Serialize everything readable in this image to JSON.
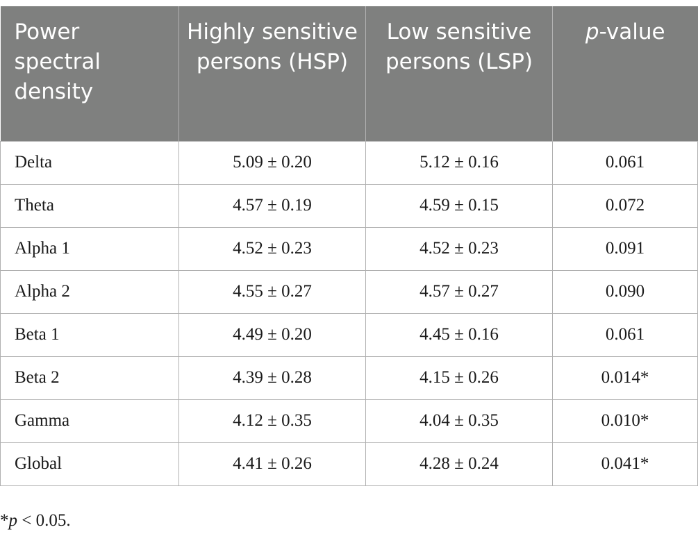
{
  "table": {
    "headers": {
      "col1": "Power spectral density",
      "col2": "Highly sensitive persons (HSP)",
      "col3": "Low sensitive persons (LSP)",
      "col4_italic": "p",
      "col4_rest": "-value"
    },
    "rows": [
      {
        "band": "Delta",
        "hsp": "5.09 ± 0.20",
        "lsp": "5.12 ± 0.16",
        "p": "0.061"
      },
      {
        "band": "Theta",
        "hsp": "4.57 ± 0.19",
        "lsp": "4.59 ± 0.15",
        "p": "0.072"
      },
      {
        "band": "Alpha 1",
        "hsp": "4.52 ± 0.23",
        "lsp": "4.52 ± 0.23",
        "p": "0.091"
      },
      {
        "band": "Alpha 2",
        "hsp": "4.55 ± 0.27",
        "lsp": "4.57 ± 0.27",
        "p": "0.090"
      },
      {
        "band": "Beta 1",
        "hsp": "4.49 ± 0.20",
        "lsp": "4.45 ± 0.16",
        "p": "0.061"
      },
      {
        "band": "Beta 2",
        "hsp": "4.39 ± 0.28",
        "lsp": "4.15 ± 0.26",
        "p": "0.014*"
      },
      {
        "band": "Gamma",
        "hsp": "4.12 ± 0.35",
        "lsp": "4.04 ± 0.35",
        "p": "0.010*"
      },
      {
        "band": "Global",
        "hsp": "4.41 ± 0.26",
        "lsp": "4.28 ± 0.24",
        "p": "0.041*"
      }
    ]
  },
  "footnote": {
    "star": "*",
    "p": "p",
    "rest": " < 0.05."
  },
  "colors": {
    "header_bg": "#7f807f",
    "header_text": "#ffffff",
    "grid": "#b0b0b0"
  }
}
